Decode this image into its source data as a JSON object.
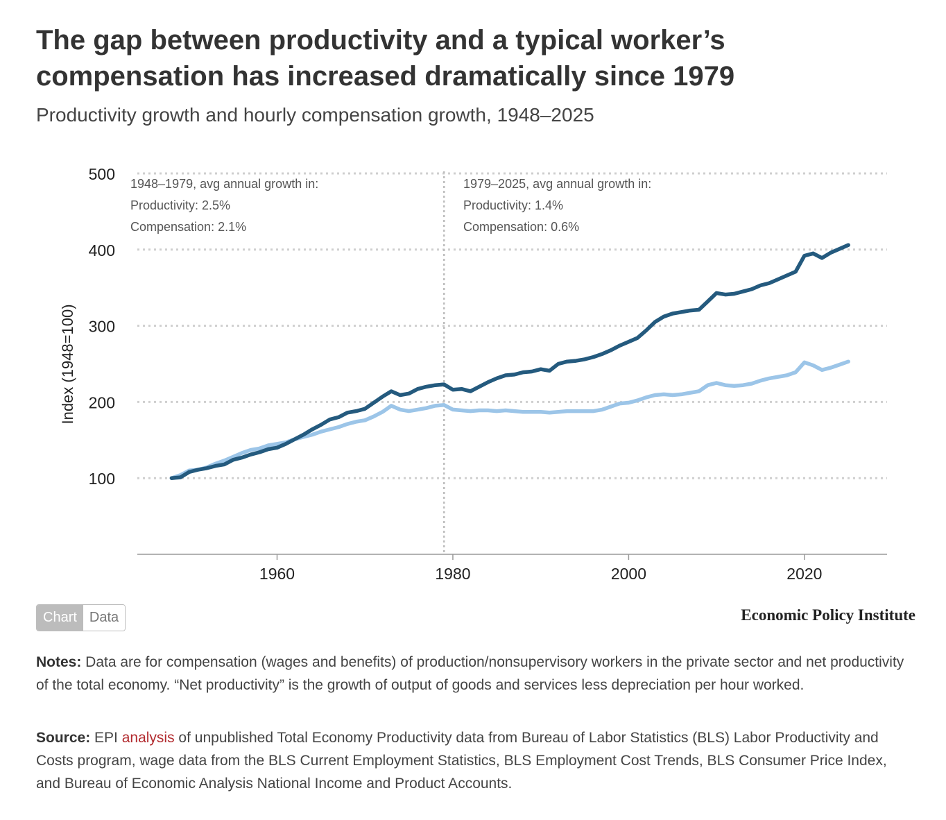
{
  "title": "The gap between productivity and a typical worker’s compensation has increased dramatically since 1979",
  "subtitle": "Productivity growth and hourly compensation growth, 1948–2025",
  "chart_data": {
    "type": "line",
    "ylabel": "Index (1948=100)",
    "xlabel": "",
    "xlim": [
      1948,
      2025.5
    ],
    "ylim": [
      0,
      500
    ],
    "yticks": [
      100,
      200,
      300,
      400,
      500
    ],
    "xticks": [
      1960,
      1980,
      2000,
      2020
    ],
    "grid": "horizontal dotted",
    "divider_year": 1979,
    "annotations": [
      {
        "lines": [
          "1948–1979, avg annual growth in:",
          "Productivity: 2.5%",
          "Compensation: 2.1%"
        ]
      },
      {
        "lines": [
          "1979–2025, avg annual growth in:",
          "Productivity: 1.4%",
          "Compensation: 0.6%"
        ]
      }
    ],
    "series": [
      {
        "name": "Productivity",
        "color": "#245a7e",
        "points": [
          [
            1948,
            100
          ],
          [
            1949,
            101
          ],
          [
            1950,
            108
          ],
          [
            1951,
            111
          ],
          [
            1952,
            113
          ],
          [
            1953,
            116
          ],
          [
            1954,
            118
          ],
          [
            1955,
            124
          ],
          [
            1956,
            127
          ],
          [
            1957,
            131
          ],
          [
            1958,
            134
          ],
          [
            1959,
            138
          ],
          [
            1960,
            140
          ],
          [
            1961,
            145
          ],
          [
            1962,
            151
          ],
          [
            1963,
            157
          ],
          [
            1964,
            164
          ],
          [
            1965,
            170
          ],
          [
            1966,
            177
          ],
          [
            1967,
            180
          ],
          [
            1968,
            186
          ],
          [
            1969,
            188
          ],
          [
            1970,
            191
          ],
          [
            1971,
            199
          ],
          [
            1972,
            207
          ],
          [
            1973,
            214
          ],
          [
            1974,
            209
          ],
          [
            1975,
            211
          ],
          [
            1976,
            217
          ],
          [
            1977,
            220
          ],
          [
            1978,
            222
          ],
          [
            1979,
            223
          ],
          [
            1980,
            216
          ],
          [
            1981,
            217
          ],
          [
            1982,
            214
          ],
          [
            1983,
            220
          ],
          [
            1984,
            226
          ],
          [
            1985,
            231
          ],
          [
            1986,
            235
          ],
          [
            1987,
            236
          ],
          [
            1988,
            239
          ],
          [
            1989,
            240
          ],
          [
            1990,
            243
          ],
          [
            1991,
            241
          ],
          [
            1992,
            250
          ],
          [
            1993,
            253
          ],
          [
            1994,
            254
          ],
          [
            1995,
            256
          ],
          [
            1996,
            259
          ],
          [
            1997,
            263
          ],
          [
            1998,
            268
          ],
          [
            1999,
            274
          ],
          [
            2000,
            279
          ],
          [
            2001,
            284
          ],
          [
            2002,
            294
          ],
          [
            2003,
            305
          ],
          [
            2004,
            312
          ],
          [
            2005,
            316
          ],
          [
            2006,
            318
          ],
          [
            2007,
            320
          ],
          [
            2008,
            321
          ],
          [
            2009,
            332
          ],
          [
            2010,
            343
          ],
          [
            2011,
            341
          ],
          [
            2012,
            342
          ],
          [
            2013,
            345
          ],
          [
            2014,
            348
          ],
          [
            2015,
            353
          ],
          [
            2016,
            356
          ],
          [
            2017,
            361
          ],
          [
            2018,
            366
          ],
          [
            2019,
            371
          ],
          [
            2020,
            392
          ],
          [
            2021,
            395
          ],
          [
            2022,
            389
          ],
          [
            2023,
            396
          ],
          [
            2024,
            401
          ],
          [
            2025,
            406
          ]
        ]
      },
      {
        "name": "Compensation",
        "color": "#9cc5e8",
        "points": [
          [
            1948,
            100
          ],
          [
            1949,
            104
          ],
          [
            1950,
            110
          ],
          [
            1951,
            111
          ],
          [
            1952,
            114
          ],
          [
            1953,
            119
          ],
          [
            1954,
            123
          ],
          [
            1955,
            128
          ],
          [
            1956,
            133
          ],
          [
            1957,
            137
          ],
          [
            1958,
            139
          ],
          [
            1959,
            143
          ],
          [
            1960,
            145
          ],
          [
            1961,
            147
          ],
          [
            1962,
            151
          ],
          [
            1963,
            154
          ],
          [
            1964,
            157
          ],
          [
            1965,
            161
          ],
          [
            1966,
            164
          ],
          [
            1967,
            167
          ],
          [
            1968,
            171
          ],
          [
            1969,
            174
          ],
          [
            1970,
            176
          ],
          [
            1971,
            181
          ],
          [
            1972,
            187
          ],
          [
            1973,
            195
          ],
          [
            1974,
            190
          ],
          [
            1975,
            188
          ],
          [
            1976,
            190
          ],
          [
            1977,
            192
          ],
          [
            1978,
            195
          ],
          [
            1979,
            196
          ],
          [
            1980,
            190
          ],
          [
            1981,
            189
          ],
          [
            1982,
            188
          ],
          [
            1983,
            189
          ],
          [
            1984,
            189
          ],
          [
            1985,
            188
          ],
          [
            1986,
            189
          ],
          [
            1987,
            188
          ],
          [
            1988,
            187
          ],
          [
            1989,
            187
          ],
          [
            1990,
            187
          ],
          [
            1991,
            186
          ],
          [
            1992,
            187
          ],
          [
            1993,
            188
          ],
          [
            1994,
            188
          ],
          [
            1995,
            188
          ],
          [
            1996,
            188
          ],
          [
            1997,
            190
          ],
          [
            1998,
            194
          ],
          [
            1999,
            198
          ],
          [
            2000,
            199
          ],
          [
            2001,
            202
          ],
          [
            2002,
            206
          ],
          [
            2003,
            209
          ],
          [
            2004,
            210
          ],
          [
            2005,
            209
          ],
          [
            2006,
            210
          ],
          [
            2007,
            212
          ],
          [
            2008,
            214
          ],
          [
            2009,
            222
          ],
          [
            2010,
            225
          ],
          [
            2011,
            222
          ],
          [
            2012,
            221
          ],
          [
            2013,
            222
          ],
          [
            2014,
            224
          ],
          [
            2015,
            228
          ],
          [
            2016,
            231
          ],
          [
            2017,
            233
          ],
          [
            2018,
            235
          ],
          [
            2019,
            239
          ],
          [
            2020,
            252
          ],
          [
            2021,
            248
          ],
          [
            2022,
            242
          ],
          [
            2023,
            245
          ],
          [
            2024,
            249
          ],
          [
            2025,
            253
          ]
        ]
      }
    ]
  },
  "controls": {
    "chart_label": "Chart",
    "data_label": "Data"
  },
  "brand": "Economic Policy Institute",
  "notes": {
    "label": "Notes:",
    "text": " Data are for compensation (wages and benefits) of production/nonsupervisory workers in the private sector and net productivity of the total economy. “Net productivity” is the growth of output of goods and services less depreciation per hour worked."
  },
  "source": {
    "label": "Source:",
    "text_before": " EPI ",
    "link": "analysis",
    "text_after": " of unpublished Total Economy Productivity data from Bureau of Labor Statistics (BLS) Labor Productivity and Costs program, wage data from the BLS Current Employment Statistics, BLS Employment Cost Trends, BLS Consumer Price Index, and Bureau of Economic Analysis National Income and Product Accounts."
  }
}
